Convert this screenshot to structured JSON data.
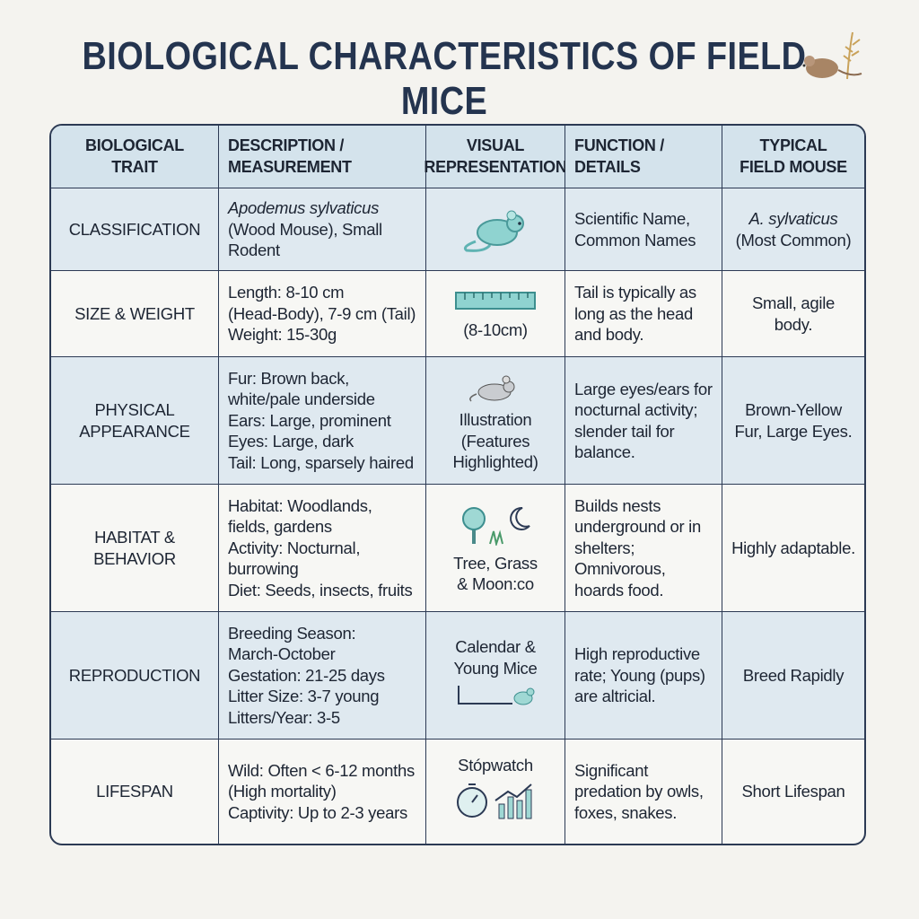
{
  "title": "BIOLOGICAL CHARACTERISTICS OF FIELD MICE",
  "table": {
    "headers": [
      [
        "BIOLOGICAL",
        "TRAIT"
      ],
      [
        "DESCRIPTION /",
        "MEASUREMENT"
      ],
      [
        "VISUAL",
        "REPRESENTATION"
      ],
      [
        "FUNCTION /",
        "DETAILS"
      ],
      [
        "TYPICAL",
        "FIELD MOUSE"
      ]
    ],
    "rows": [
      [
        [
          "CLASSIFICATION"
        ],
        [
          "Apodemus sylvaticus",
          "(Wood Mouse), Small",
          "Rodent"
        ],
        [],
        [
          "Scientific Name,",
          "Common Names"
        ],
        [
          "A. sylvaticus",
          "(Most Common)"
        ]
      ],
      [
        [
          "SIZE & WEIGHT"
        ],
        [
          "Length: 8-10 cm",
          "(Head-Body), 7-9 cm (Tail)",
          "Weight: 15-30g"
        ],
        [
          "(8-10cm)"
        ],
        [
          "Tail is typically as",
          "long as the head",
          "and body."
        ],
        [
          "Small, agile body."
        ]
      ],
      [
        [
          "PHYSICAL",
          "APPEARANCE"
        ],
        [
          "Fur: Brown back,",
          "white/pale underside",
          "Ears: Large, prominent",
          "Eyes: Large, dark",
          "Tail: Long, sparsely haired"
        ],
        [
          "Illustration",
          "(Features",
          "Highlighted)"
        ],
        [
          "Large eyes/ears for",
          "nocturnal activity;",
          "slender tail for",
          "balance."
        ],
        [
          "Brown-Yellow",
          "Fur, Large Eyes."
        ]
      ],
      [
        [
          "HABITAT &",
          "BEHAVIOR"
        ],
        [
          "Habitat: Woodlands,",
          "fields, gardens",
          "Activity: Nocturnal,",
          "burrowing",
          "Diet: Seeds, insects, fruits"
        ],
        [
          "Tree, Grass",
          "& Moon:co"
        ],
        [
          "Builds nests",
          "underground or in",
          "shelters;",
          "Omnivorous,",
          "hoards food."
        ],
        [
          "Highly adaptable."
        ]
      ],
      [
        [
          "REPRODUCTION"
        ],
        [
          "Breeding Season:",
          "March-October",
          "Gestation: 21-25 days",
          "Litter Size: 3-7 young",
          "Litters/Year: 3-5"
        ],
        [
          "Calendar &",
          "Young Mice"
        ],
        [
          "High reproductive",
          "rate; Young (pups)",
          "are altricial."
        ],
        [
          "Breed Rapidly"
        ]
      ],
      [
        [
          "LIFESPAN"
        ],
        [
          "Wild: Often < 6-12 months",
          "(High mortality)",
          "Captivity: Up to 2-3 years"
        ],
        [
          "Stópwatch"
        ],
        [
          "Significant",
          "predation by owls,",
          "foxes, snakes."
        ],
        [
          "Short Lifespan"
        ]
      ]
    ]
  }
}
